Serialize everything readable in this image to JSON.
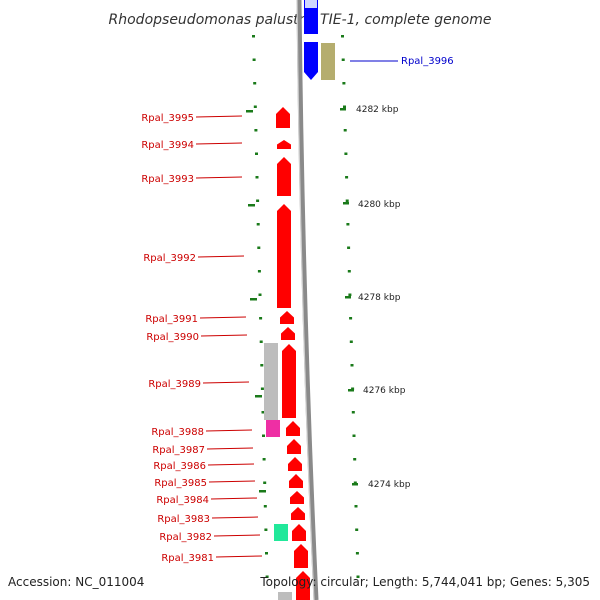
{
  "title": "Rhodopseudomonas palustris TIE-1, complete genome",
  "footer": {
    "accession": "Accession: NC_011004",
    "summary": "Topology: circular; Length: 5,744,041 bp; Genes: 5,305"
  },
  "colors": {
    "left_labels": "#cc0000",
    "right_labels": "#0000cc",
    "forward_gene": "#ff0000",
    "reverse_gene": "#0000ff",
    "backbone": "#808080",
    "ticks": "#1a7a1a"
  },
  "scale_labels": [
    "4282 kbp",
    "4280 kbp",
    "4278 kbp",
    "4276 kbp",
    "4274 kbp"
  ],
  "genes": [
    {
      "label": "Rpal_3996",
      "strand": "reverse",
      "color": "#0000ff",
      "side": "right"
    },
    {
      "label": "Rpal_3995",
      "strand": "forward",
      "color": "#ff0000",
      "side": "left"
    },
    {
      "label": "Rpal_3994",
      "strand": "forward",
      "color": "#ff0000",
      "side": "left"
    },
    {
      "label": "Rpal_3993",
      "strand": "forward",
      "color": "#ff0000",
      "side": "left"
    },
    {
      "label": "Rpal_3992",
      "strand": "forward",
      "color": "#ff0000",
      "side": "left"
    },
    {
      "label": "Rpal_3991",
      "strand": "forward",
      "color": "#ff0000",
      "side": "left"
    },
    {
      "label": "Rpal_3990",
      "strand": "forward",
      "color": "#ff0000",
      "side": "left"
    },
    {
      "label": "Rpal_3989",
      "strand": "forward",
      "color": "#ff0000",
      "side": "left"
    },
    {
      "label": "Rpal_3988",
      "strand": "forward",
      "color": "#ff0000",
      "side": "left"
    },
    {
      "label": "Rpal_3987",
      "strand": "forward",
      "color": "#ff0000",
      "side": "left"
    },
    {
      "label": "Rpal_3986",
      "strand": "forward",
      "color": "#ff0000",
      "side": "left"
    },
    {
      "label": "Rpal_3985",
      "strand": "forward",
      "color": "#ff0000",
      "side": "left"
    },
    {
      "label": "Rpal_3984",
      "strand": "forward",
      "color": "#ff0000",
      "side": "left"
    },
    {
      "label": "Rpal_3983",
      "strand": "forward",
      "color": "#ff0000",
      "side": "left"
    },
    {
      "label": "Rpal_3982",
      "strand": "forward",
      "color": "#ff0000",
      "side": "left"
    },
    {
      "label": "Rpal_3981",
      "strand": "forward",
      "color": "#ff0000",
      "side": "left"
    }
  ]
}
